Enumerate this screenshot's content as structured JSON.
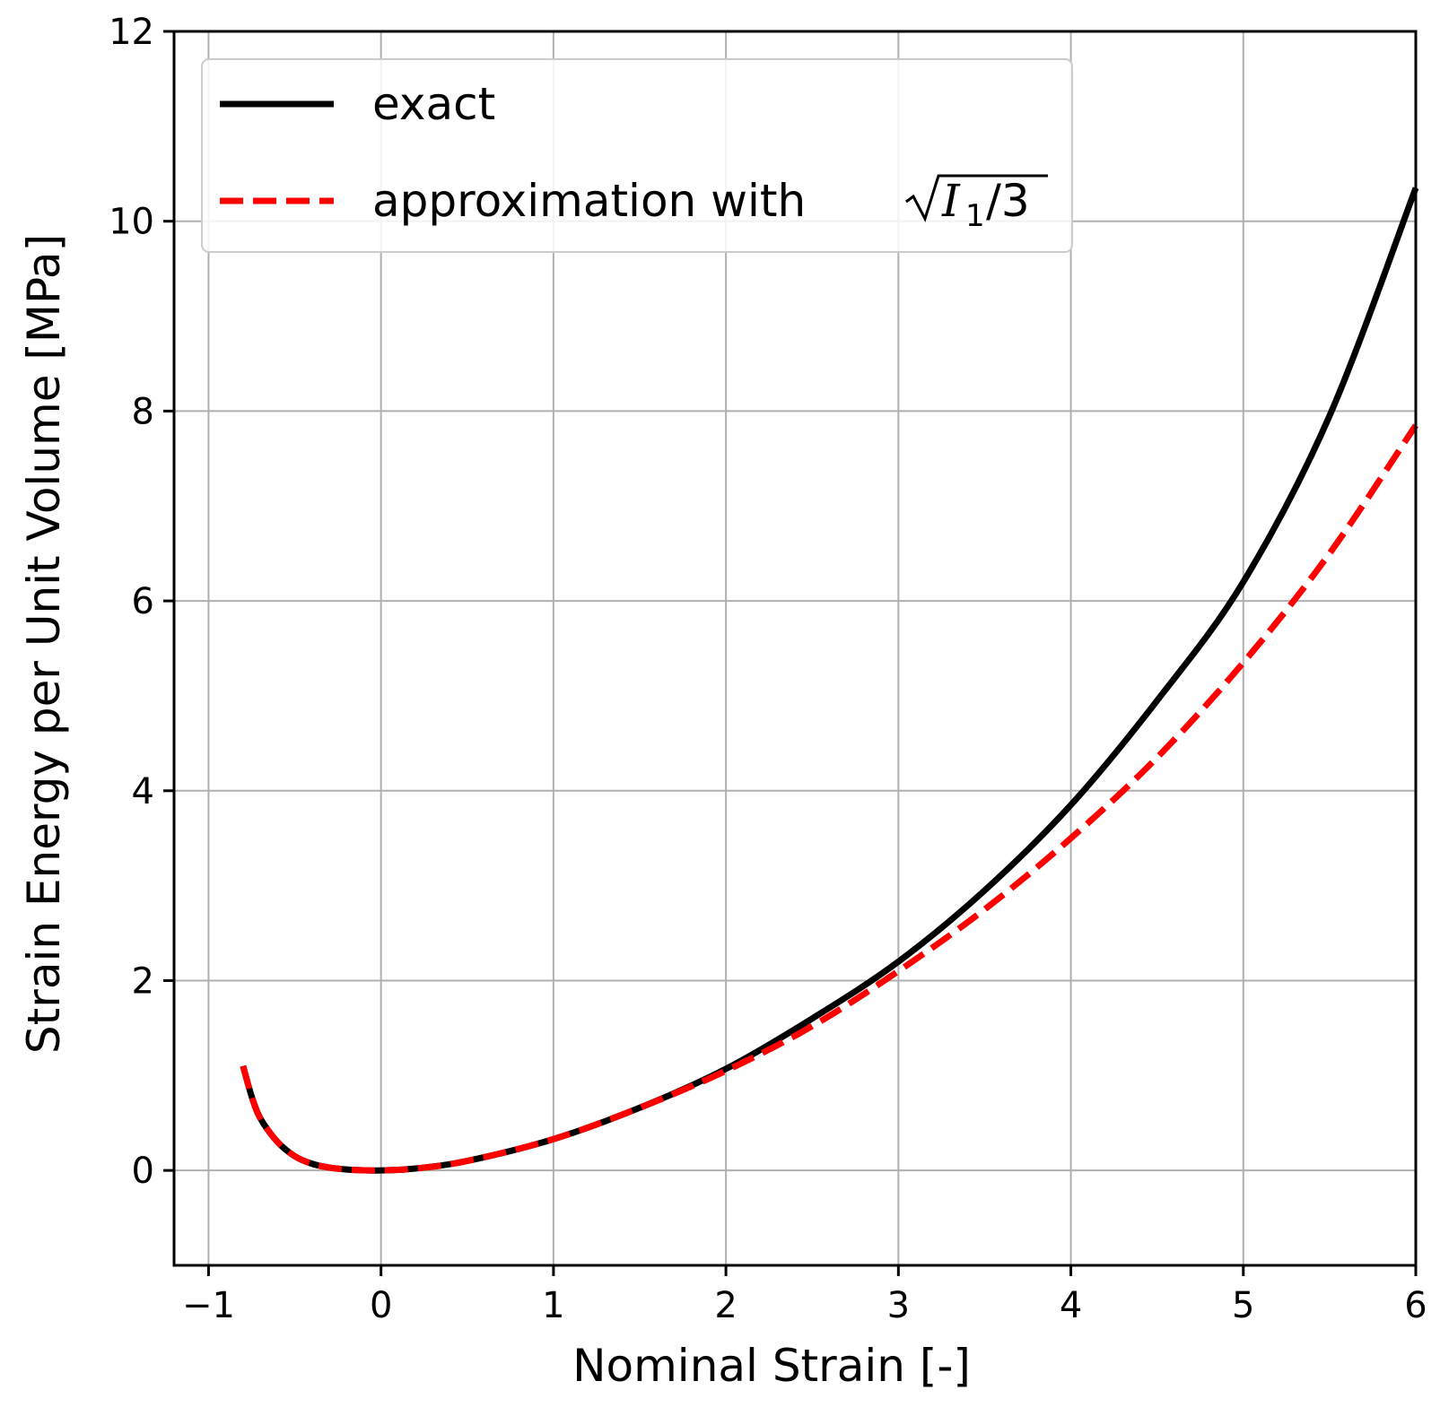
{
  "chart_data": {
    "type": "line",
    "title": "",
    "xlabel": "Nominal Strain [-]",
    "ylabel": "Strain Energy per Unit Volume [MPa]",
    "xlim": [
      -1.2,
      6
    ],
    "ylim": [
      -1,
      12
    ],
    "xticks": [
      -1,
      0,
      1,
      2,
      3,
      4,
      5,
      6
    ],
    "xtick_labels": [
      "−1",
      "0",
      "1",
      "2",
      "3",
      "4",
      "5",
      "6"
    ],
    "yticks": [
      0,
      2,
      4,
      6,
      8,
      10,
      12
    ],
    "ytick_labels": [
      "0",
      "2",
      "4",
      "6",
      "8",
      "10",
      "12"
    ],
    "grid": true,
    "legend_position": "top-left",
    "series": [
      {
        "name": "exact",
        "color": "#000000",
        "style": "solid",
        "x": [
          -0.8,
          -0.75,
          -0.7,
          -0.6,
          -0.5,
          -0.4,
          -0.3,
          -0.2,
          -0.1,
          0.0,
          0.2,
          0.5,
          1.0,
          1.5,
          2.0,
          2.5,
          3.0,
          3.5,
          4.0,
          4.5,
          5.0,
          5.5,
          6.0
        ],
        "y": [
          1.1,
          0.78,
          0.55,
          0.3,
          0.15,
          0.07,
          0.03,
          0.01,
          0.002,
          0.0,
          0.02,
          0.1,
          0.33,
          0.66,
          1.07,
          1.6,
          2.2,
          2.95,
          3.85,
          4.95,
          6.2,
          7.95,
          10.35
        ]
      },
      {
        "name": "approximation with",
        "name_math": {
          "var": "I",
          "sub": "1",
          "rest": "/3"
        },
        "color": "#ff0000",
        "style": "dashed",
        "x": [
          -0.8,
          -0.75,
          -0.7,
          -0.6,
          -0.5,
          -0.4,
          -0.3,
          -0.2,
          -0.1,
          0.0,
          0.2,
          0.5,
          1.0,
          1.5,
          2.0,
          2.5,
          3.0,
          3.5,
          4.0,
          4.5,
          5.0,
          5.5,
          6.0
        ],
        "y": [
          1.1,
          0.78,
          0.55,
          0.3,
          0.15,
          0.07,
          0.03,
          0.01,
          0.002,
          0.0,
          0.02,
          0.1,
          0.33,
          0.66,
          1.05,
          1.52,
          2.1,
          2.75,
          3.5,
          4.35,
          5.35,
          6.5,
          7.85
        ]
      }
    ]
  }
}
